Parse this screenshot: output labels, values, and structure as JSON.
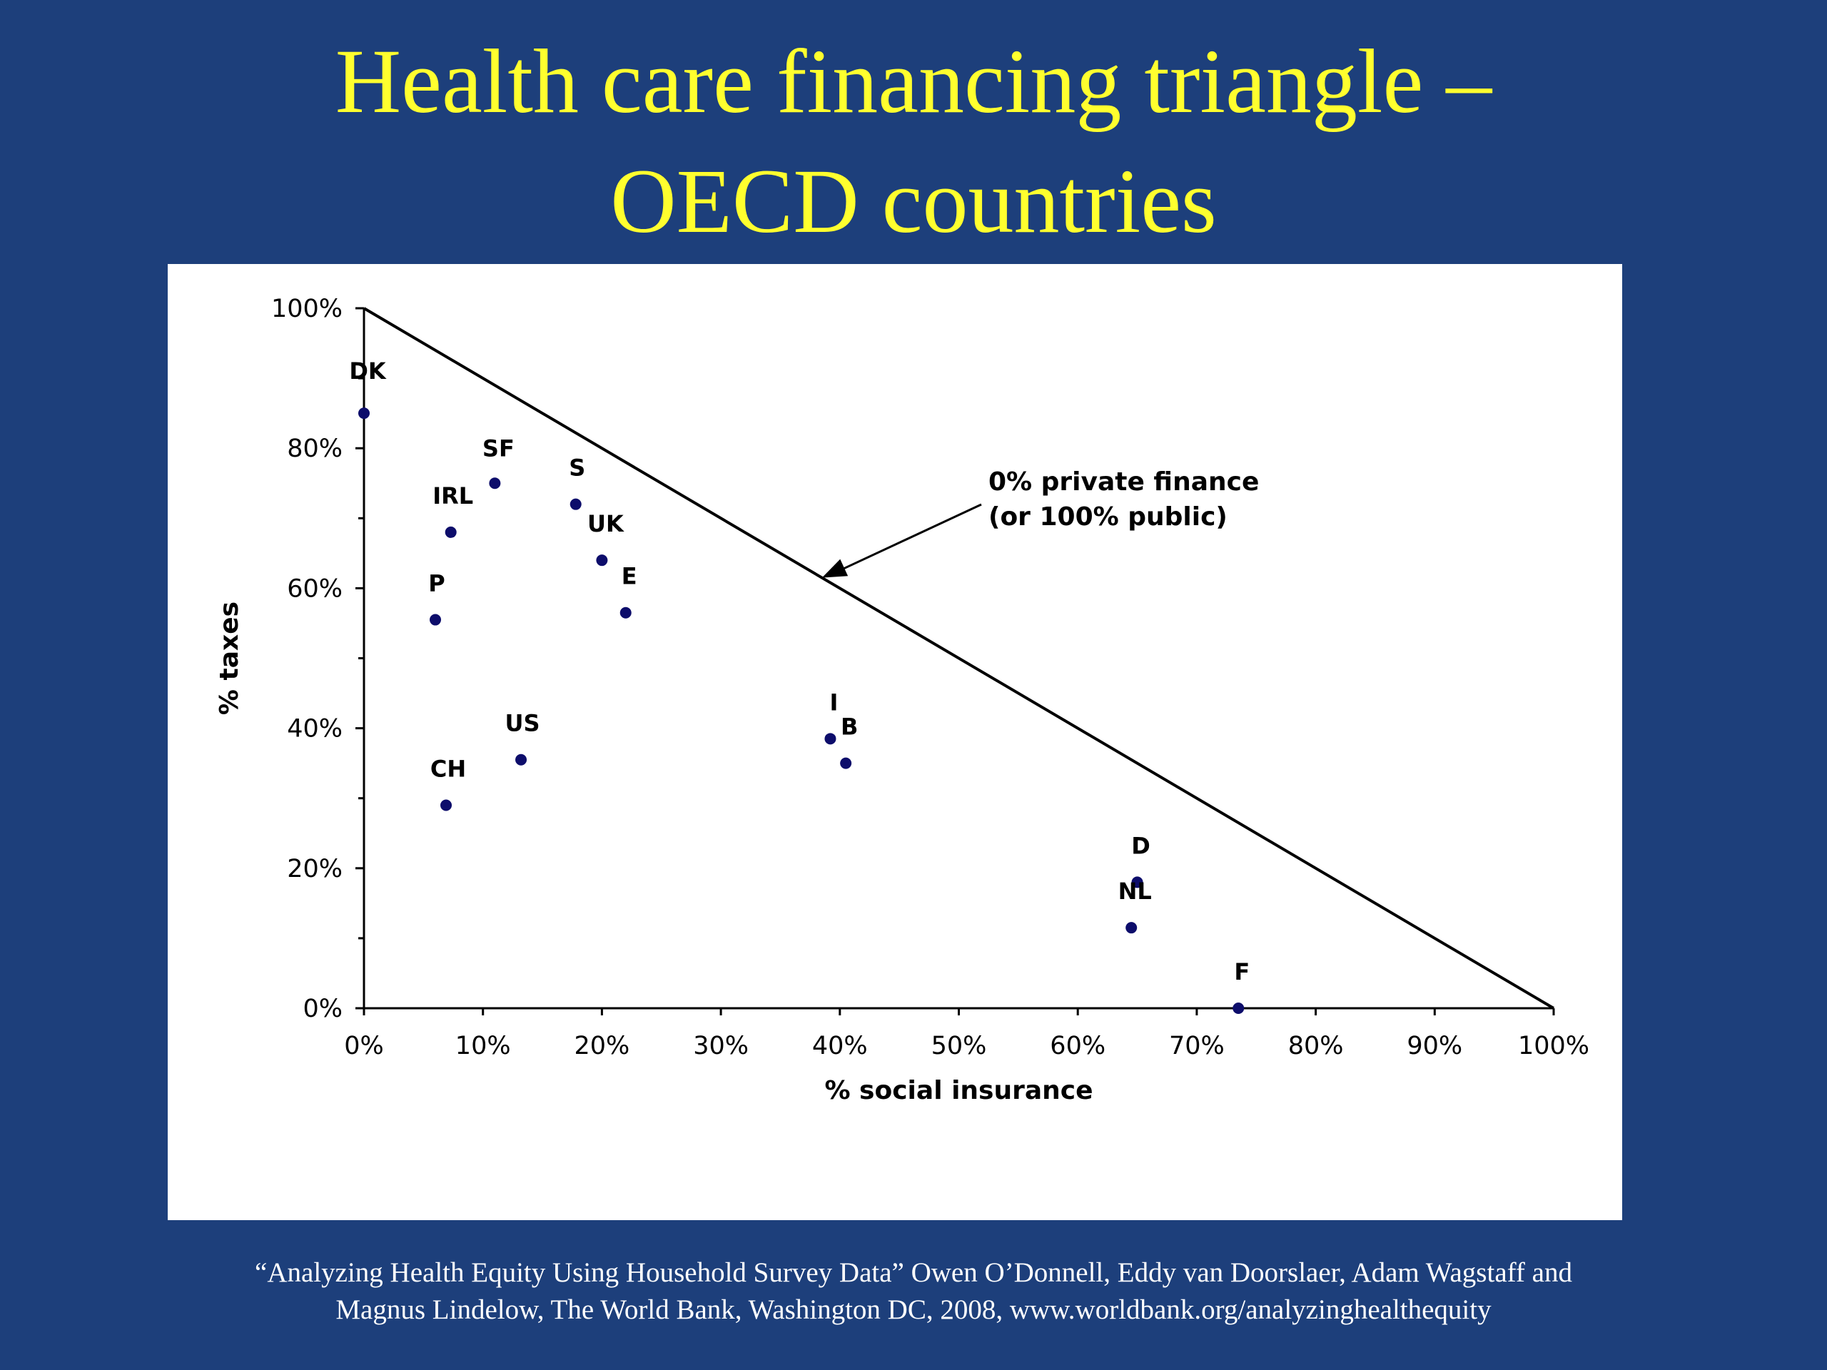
{
  "slide": {
    "title_line1": "Health care financing triangle –",
    "title_line2": "OECD countries",
    "citation_line1": "“Analyzing Health Equity Using Household Survey Data” Owen O’Donnell, Eddy van Doorslaer, Adam Wagstaff and",
    "citation_line2": "Magnus Lindelow, The World Bank, Washington DC, 2008, www.worldbank.org/analyzinghealthequity",
    "background_color": "#1d3f7b",
    "title_color": "#ffff2e"
  },
  "chart_data": {
    "type": "scatter",
    "xlabel": "% social insurance",
    "ylabel": "% taxes",
    "xlim": [
      0,
      100
    ],
    "ylim": [
      0,
      100
    ],
    "x_ticks": [
      "0%",
      "10%",
      "20%",
      "30%",
      "40%",
      "50%",
      "60%",
      "70%",
      "80%",
      "90%",
      "100%"
    ],
    "y_ticks": [
      "0%",
      "20%",
      "40%",
      "60%",
      "80%",
      "100%"
    ],
    "grid": false,
    "point_color": "#0d0d6b",
    "points": [
      {
        "label": "DK",
        "x": 0,
        "y": 85
      },
      {
        "label": "SF",
        "x": 11,
        "y": 75
      },
      {
        "label": "IRL",
        "x": 7.3,
        "y": 68
      },
      {
        "label": "S",
        "x": 17.8,
        "y": 72
      },
      {
        "label": "UK",
        "x": 20,
        "y": 64
      },
      {
        "label": "E",
        "x": 22,
        "y": 56.5
      },
      {
        "label": "P",
        "x": 6,
        "y": 55.5
      },
      {
        "label": "US",
        "x": 13.2,
        "y": 35.5
      },
      {
        "label": "CH",
        "x": 6.9,
        "y": 29
      },
      {
        "label": "I",
        "x": 39.2,
        "y": 38.5
      },
      {
        "label": "B",
        "x": 40.5,
        "y": 35
      },
      {
        "label": "D",
        "x": 65,
        "y": 18
      },
      {
        "label": "NL",
        "x": 64.5,
        "y": 11.5
      },
      {
        "label": "F",
        "x": 73.5,
        "y": 0
      }
    ],
    "boundary_line": {
      "from": [
        0,
        100
      ],
      "to": [
        100,
        0
      ]
    },
    "annotation": {
      "line1": "0% private finance",
      "line2": "(or 100% public)",
      "points_to": [
        38.5,
        61.5
      ]
    }
  }
}
